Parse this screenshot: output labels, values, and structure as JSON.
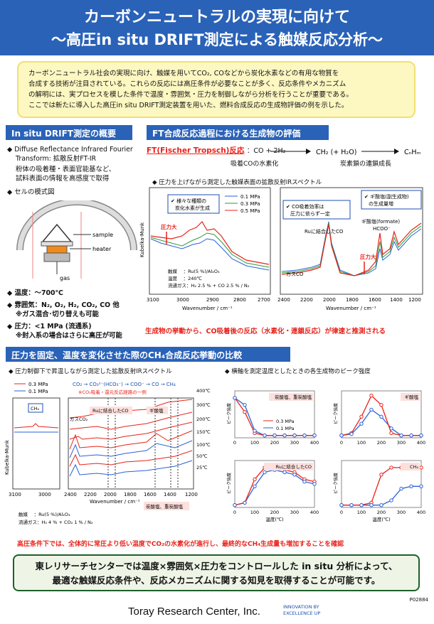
{
  "header": {
    "title1": "カーボンニュートラルの実現に向けて",
    "title2": "～高圧in situ DRIFT測定による触媒反応分析～"
  },
  "intro": {
    "lines": [
      "カーボンニュートラル社会の実現に向け、触媒を用いてCO₂, COなどから炭化水素などの有用な物質を",
      "合成する技術が注目されている。これらの反応には高圧条件が必要なことが多く、反応条件やメカニズム",
      "の解明には、実プロセスを模した条件で温度・雰囲気・圧力を制御しながら分析を行うことが重要である。",
      "ここでは新たに導入した高圧in situ DRIFT測定装置を用いた、燃料合成反応の生成物評価の例を示した。"
    ]
  },
  "left": {
    "heading": "In situ DRIFT測定の概要",
    "b1": "Diffuse Reflectance Infrared Fourier",
    "b1b": "Transform: 拡散反射FT-IR",
    "b1desc1": "粉体の吸着種・表面官能基など、",
    "b1desc2": "試料表面の情報を高感度で取得",
    "b2": "セルの模式図",
    "cell_sample": "sample",
    "cell_heater": "heater",
    "cell_gas": "gas",
    "temp": "温度：～700℃",
    "atm": "雰囲気：N₂, O₂, H₂, CO₂, CO 他",
    "atm2": "※ガス混合･切り替えも可能",
    "press": "圧力：<1 MPa (流通系)",
    "press2": "※封入系の場合はさらに高圧が可能"
  },
  "ft": {
    "heading": "FT合成反応過程における生成物の評価",
    "name": "FT(Fischer Tropsch)反応",
    "eq_left": "：CO + 2H₂",
    "eq_mid": "CH₂ (+ H₂O)",
    "eq_right": "CₙHₘ",
    "note1": "吸着COの水素化",
    "note2": "炭素鎖の連鎖成長",
    "sub": "圧力を上げながら測定した触媒表面の拡散反射IRスペクトル",
    "chart_ylabel": "Kubelka-Munk",
    "chart_xlabel": "Wavenumber / cm⁻¹",
    "left_xticks": [
      "3100",
      "3000",
      "2900",
      "2800",
      "2700"
    ],
    "right_xticks": [
      "2400",
      "2200",
      "2000",
      "1800",
      "1600",
      "1400",
      "1200"
    ],
    "legend": [
      "0.1 MPa",
      "0.3 MPa",
      "0.5 MPa"
    ],
    "callout1a": "様々な種類の",
    "callout1b": "炭化水素が生成",
    "press_up": "圧力大",
    "cond1": "触媒　 ：Ru(5 %)/Al₂O₃",
    "cond2": "温度　 ：240℃",
    "cond3": "流通ガス：H₂ 2.5 % + CO 2.5 % / N₂",
    "callout2a": "CO吸着効率は",
    "callout2b": "圧力に依らず一定",
    "callout3a": "ギ酸塩(副生成物)",
    "callout3b": "の生成量増",
    "ru_co": "Ruに結合したCO",
    "gas_co": "ガスCO",
    "formate": "ギ酸塩(formate)",
    "hcoo": "HCOO⁻",
    "conclusion": "生成物の挙動から、CO吸着後の反応（水素化・連鎖反応）が律速と推測される"
  },
  "ch4": {
    "heading": "圧力を固定、温度を変化させた際のCH₄合成反応挙動の比較",
    "sub_left": "圧力制御下で昇温しながら測定した拡散反射IRスペクトル",
    "legend": [
      "0.3 MPa",
      "0.1 MPa"
    ],
    "scheme": "CO₂ → CO₃²⁻(HCO₃⁻) → COO⁻ → CO → CH₄",
    "scheme_note": "※CO₂吸着・還元反応経路の一例",
    "ch4_label": "CH₄",
    "gas_co2": "ガスCO₂",
    "ru_co": "Ruに結合したCO",
    "formate": "ギ酸塩",
    "carb": "炭酸塩、重炭酸塩",
    "temps": [
      "400℃",
      "300℃",
      "200℃",
      "150℃",
      "100℃",
      "50℃",
      "25℃"
    ],
    "xticks_l": [
      "3100",
      "3000",
      "2400",
      "2200",
      "2000",
      "1800",
      "1600",
      "1400",
      "1200"
    ],
    "ylabel": "Kubelka-Munk",
    "xlabel": "Wavenumber / cm⁻¹",
    "cond1": "触媒　 ：Ru(5 %)/Al₂O₃",
    "cond2": "流通ガス：H₂ 4 % + CO₂ 1 % / N₂",
    "sub_right": "横軸を測定温度としたときの各生成物のピーク強度",
    "panel_titles": [
      "炭酸塩、重炭酸塩",
      "ギ酸塩",
      "Ruに結合したCO",
      "CH₄"
    ],
    "peak_ylabel": "ピーク強度",
    "temp_xlabel": "温度(℃)",
    "temp_ticks": [
      "0",
      "100",
      "200",
      "300",
      "400"
    ],
    "conclusion": "高圧条件下では、全体的に常圧より低い温度でCO₂の水素化が進行し、最終的なCH₄生成量も増加することを確認"
  },
  "chart_data": [
    {
      "type": "line",
      "x": [
        0,
        50,
        100,
        150,
        200,
        250,
        300,
        350,
        400
      ],
      "series": [
        {
          "name": "0.3 MPa",
          "values": [
            0.85,
            0.55,
            0.1,
            0.05,
            0.05,
            0.05,
            0.05,
            0.05,
            0.05
          ]
        },
        {
          "name": "0.1 MPa",
          "values": [
            0.85,
            0.7,
            0.15,
            0.05,
            0.05,
            0.05,
            0.05,
            0.05,
            0.05
          ]
        }
      ],
      "title": "炭酸塩、重炭酸塩",
      "xlabel": "温度(℃)",
      "ylabel": "ピーク強度",
      "xlim": [
        0,
        400
      ]
    },
    {
      "type": "line",
      "x": [
        0,
        50,
        100,
        150,
        200,
        250,
        300,
        350,
        400
      ],
      "series": [
        {
          "name": "0.3 MPa",
          "values": [
            0.05,
            0.1,
            0.45,
            0.9,
            0.7,
            0.1,
            0.05,
            0.05,
            0.05
          ]
        },
        {
          "name": "0.1 MPa",
          "values": [
            0.05,
            0.08,
            0.3,
            0.6,
            0.45,
            0.2,
            0.05,
            0.05,
            0.05
          ]
        }
      ],
      "title": "ギ酸塩",
      "xlabel": "温度(℃)",
      "ylabel": "ピーク強度",
      "xlim": [
        0,
        400
      ]
    },
    {
      "type": "line",
      "x": [
        0,
        50,
        100,
        150,
        200,
        250,
        300,
        350,
        400
      ],
      "series": [
        {
          "name": "0.3 MPa",
          "values": [
            0.05,
            0.1,
            0.6,
            0.85,
            0.85,
            0.8,
            0.75,
            0.6,
            0.55
          ]
        },
        {
          "name": "0.1 MPa",
          "values": [
            0.05,
            0.1,
            0.45,
            0.75,
            0.8,
            0.75,
            0.7,
            0.55,
            0.5
          ]
        }
      ],
      "title": "Ruに結合したCO",
      "xlabel": "温度(℃)",
      "ylabel": "ピーク強度",
      "xlim": [
        0,
        400
      ]
    },
    {
      "type": "line",
      "x": [
        0,
        50,
        100,
        150,
        200,
        250,
        300,
        350,
        400
      ],
      "series": [
        {
          "name": "0.3 MPa",
          "values": [
            0.05,
            0.05,
            0.05,
            0.1,
            0.7,
            0.85,
            0.85,
            0.85,
            0.85
          ]
        },
        {
          "name": "0.1 MPa",
          "values": [
            0.05,
            0.05,
            0.05,
            0.05,
            0.05,
            0.15,
            0.4,
            0.45,
            0.45
          ]
        }
      ],
      "title": "CH₄",
      "xlabel": "温度(℃)",
      "ylabel": "ピーク強度",
      "xlim": [
        0,
        400
      ]
    }
  ],
  "bottom": {
    "line1": "東レリサーチセンターでは温度×雰囲気×圧力をコントロールした in situ 分析によって、",
    "line2": "最適な触媒反応条件や、反応メカニズムに関する知見を取得することが可能です。"
  },
  "footer": {
    "company": "Toray Research Center, Inc.",
    "tagline1": "INNOVATION BY",
    "tagline2": "EXCELLENCE UP",
    "code": "P02884"
  },
  "colors": {
    "header": "#2a62b8",
    "red": "#e8231b",
    "blue": "#1d4fb0",
    "green": "#2f9a3a"
  }
}
